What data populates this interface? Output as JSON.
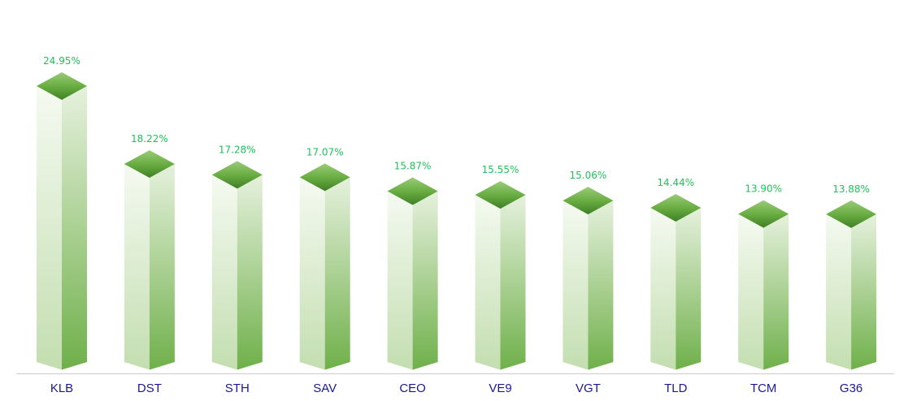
{
  "chart_data": {
    "type": "bar",
    "title": "",
    "xlabel": "",
    "ylabel": "",
    "categories": [
      "KLB",
      "DST",
      "STH",
      "SAV",
      "CEO",
      "VE9",
      "VGT",
      "TLD",
      "TCM",
      "G36"
    ],
    "values": [
      24.95,
      18.22,
      17.28,
      17.07,
      15.87,
      15.55,
      15.06,
      14.44,
      13.9,
      13.88
    ],
    "value_labels": [
      "24.95%",
      "18.22%",
      "17.28%",
      "17.07%",
      "15.87%",
      "15.55%",
      "15.06%",
      "14.44%",
      "13.90%",
      "13.88%"
    ],
    "ylim": [
      0,
      26
    ],
    "grid": false,
    "legend": "none",
    "colors": {
      "bar_dark": "#6aaa45",
      "bar_light": "#f4f9f0",
      "top": "#5f9e3a",
      "value_label": "#1fc25a",
      "category_label": "#1a1a8e",
      "axis": "#cccccc"
    }
  }
}
